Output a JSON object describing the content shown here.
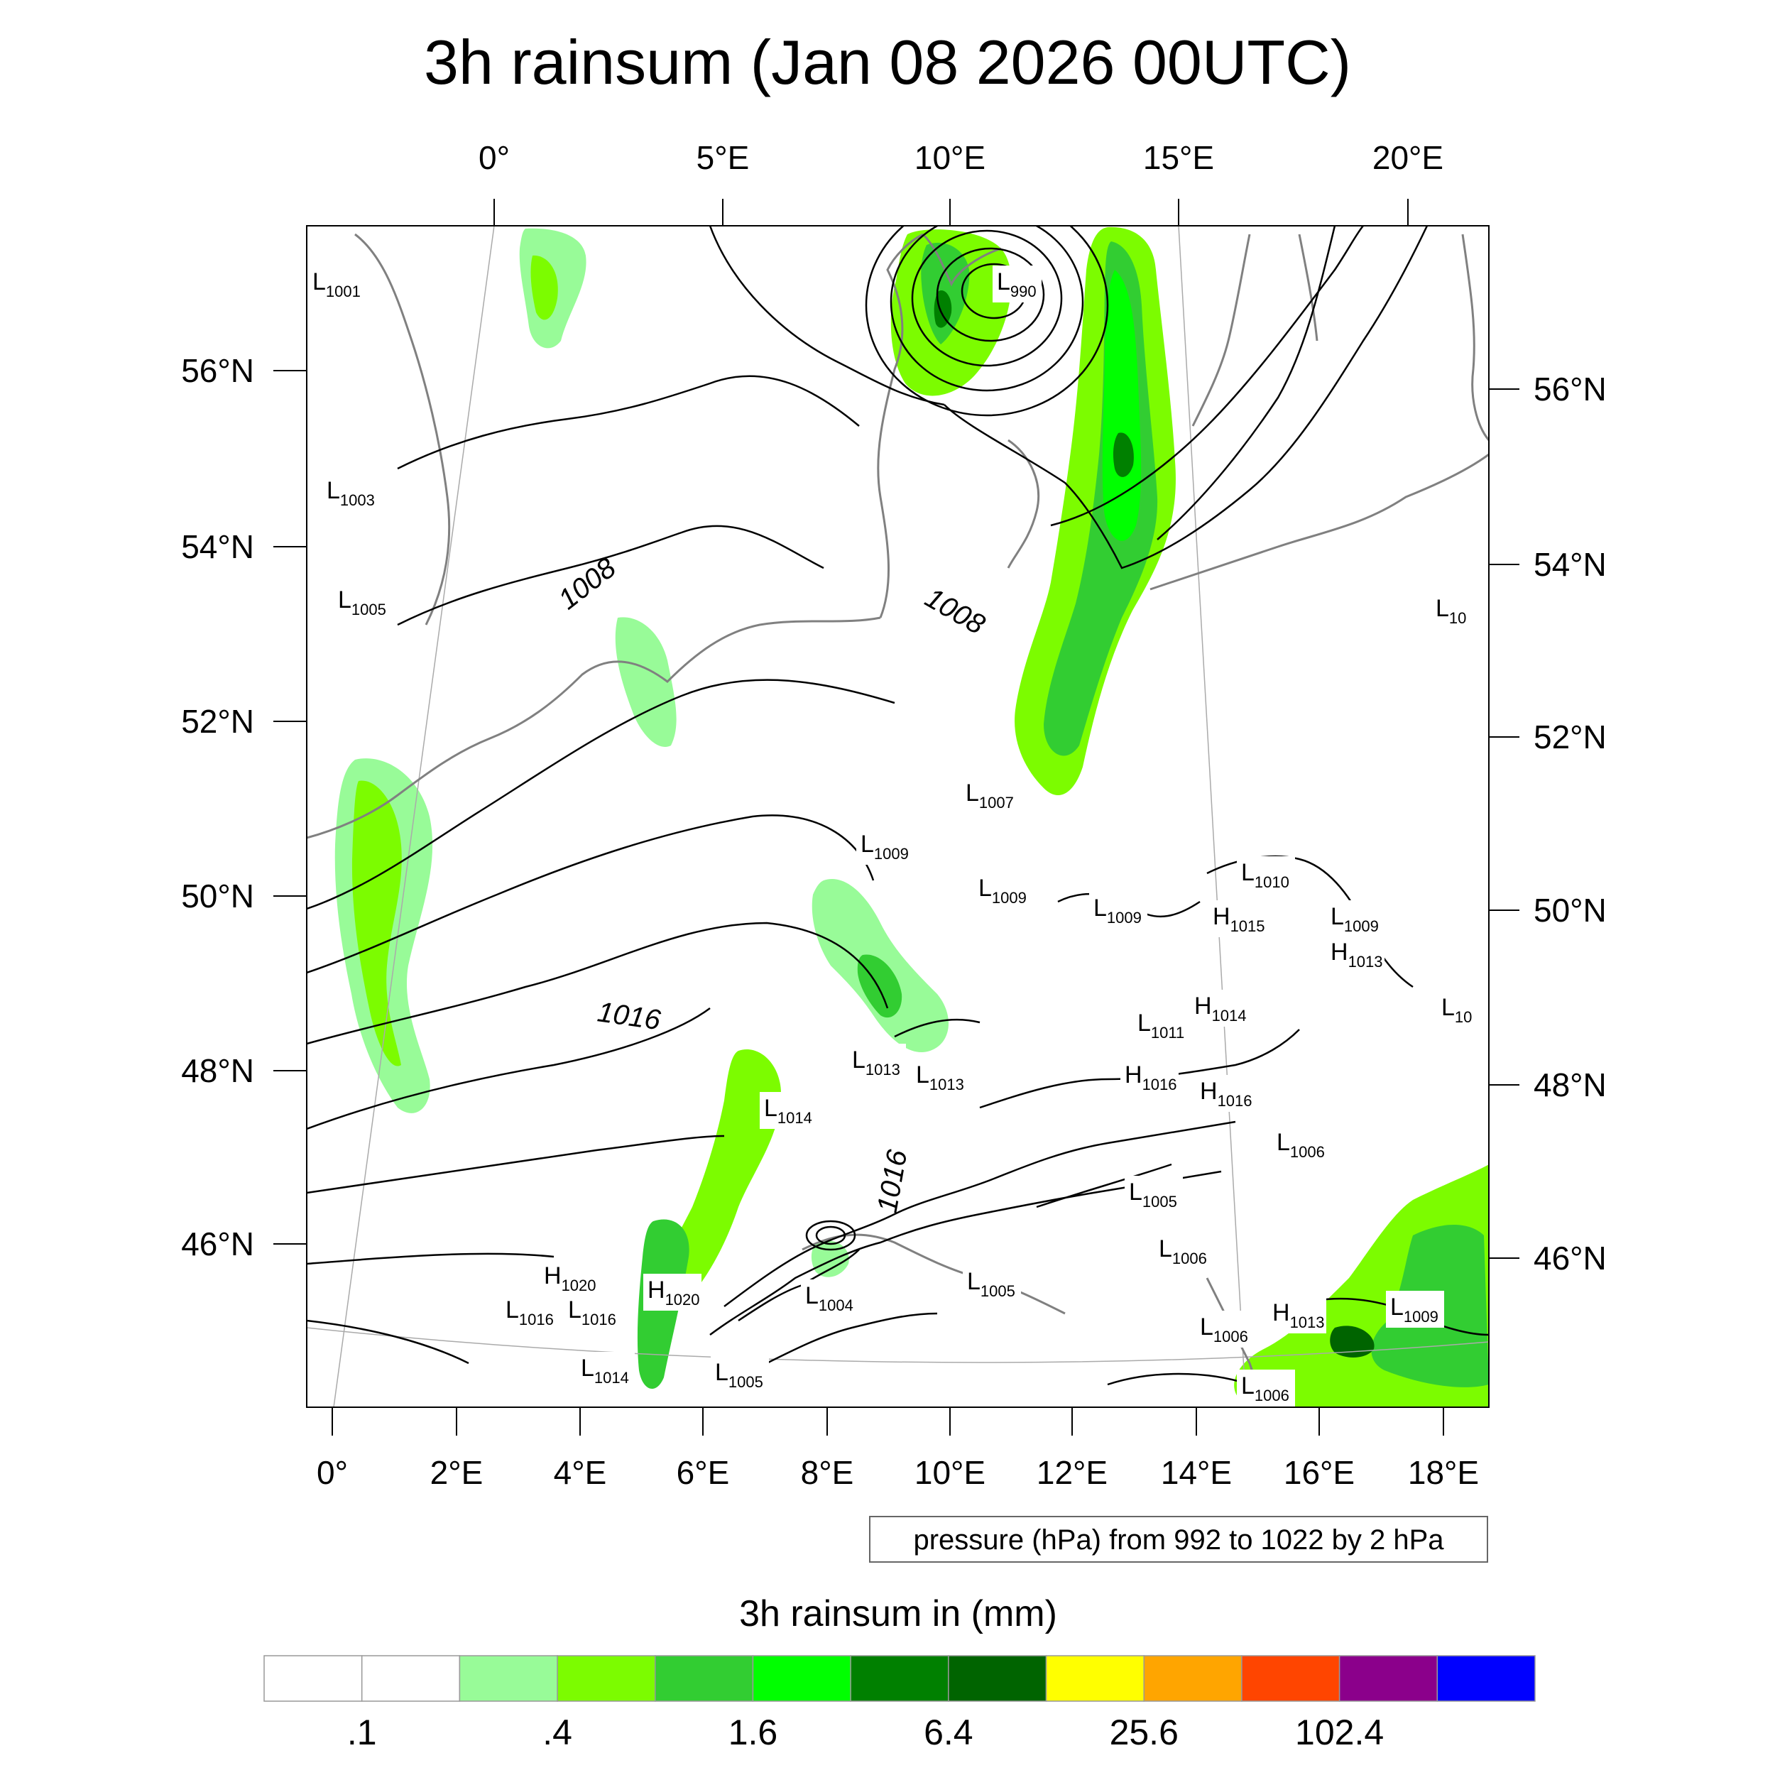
{
  "title": "3h rainsum (Jan 08 2026 00UTC)",
  "top_lon_labels": [
    "0°",
    "5°E",
    "10°E",
    "15°E",
    "20°E"
  ],
  "bottom_lon_labels": [
    "0°",
    "2°E",
    "4°E",
    "6°E",
    "8°E",
    "10°E",
    "12°E",
    "14°E",
    "16°E",
    "18°E"
  ],
  "left_lat_labels": [
    "56°N",
    "54°N",
    "52°N",
    "50°N",
    "48°N",
    "46°N"
  ],
  "right_lat_labels": [
    "56°N",
    "54°N",
    "52°N",
    "50°N",
    "48°N",
    "46°N"
  ],
  "contour_labels": [
    "1008",
    "1008",
    "1016",
    "1016"
  ],
  "pressure_centers": [
    {
      "t": "L",
      "v": "1001"
    },
    {
      "t": "L",
      "v": "990"
    },
    {
      "t": "L",
      "v": "1003"
    },
    {
      "t": "L",
      "v": "1005"
    },
    {
      "t": "L",
      "v": "10"
    },
    {
      "t": "L",
      "v": "1007"
    },
    {
      "t": "L",
      "v": "1009"
    },
    {
      "t": "L",
      "v": "1009"
    },
    {
      "t": "L",
      "v": "1009"
    },
    {
      "t": "L",
      "v": "1010"
    },
    {
      "t": "H",
      "v": "1015"
    },
    {
      "t": "L",
      "v": "1009"
    },
    {
      "t": "H",
      "v": "1013"
    },
    {
      "t": "L",
      "v": "10"
    },
    {
      "t": "H",
      "v": "1014"
    },
    {
      "t": "L",
      "v": "1011"
    },
    {
      "t": "L",
      "v": "1013"
    },
    {
      "t": "L",
      "v": "1013"
    },
    {
      "t": "H",
      "v": "1016"
    },
    {
      "t": "H",
      "v": "1016"
    },
    {
      "t": "L",
      "v": "1014"
    },
    {
      "t": "L",
      "v": "1006"
    },
    {
      "t": "L",
      "v": "1005"
    },
    {
      "t": "L",
      "v": "1006"
    },
    {
      "t": "H",
      "v": "1020"
    },
    {
      "t": "H",
      "v": "1020"
    },
    {
      "t": "L",
      "v": "1016"
    },
    {
      "t": "L",
      "v": "1016"
    },
    {
      "t": "L",
      "v": "1004"
    },
    {
      "t": "L",
      "v": "1005"
    },
    {
      "t": "L",
      "v": "1006"
    },
    {
      "t": "H",
      "v": "1013"
    },
    {
      "t": "L",
      "v": "1009"
    },
    {
      "t": "L",
      "v": "1014"
    },
    {
      "t": "L",
      "v": "1005"
    },
    {
      "t": "L",
      "v": "1006"
    }
  ],
  "contour_note": "pressure (hPa) from 992 to 1022 by 2 hPa",
  "colorbar": {
    "title": "3h rainsum in (mm)",
    "colors": [
      "#ffffff",
      "#ffffff",
      "#98fb98",
      "#7cfc00",
      "#32cd32",
      "#00ff00",
      "#008000",
      "#006400",
      "#ffff00",
      "#ffa500",
      "#ff4500",
      "#8b008b",
      "#0000ff"
    ],
    "labels": [
      ".1",
      ".4",
      "1.6",
      "6.4",
      "25.6",
      "102.4"
    ]
  }
}
